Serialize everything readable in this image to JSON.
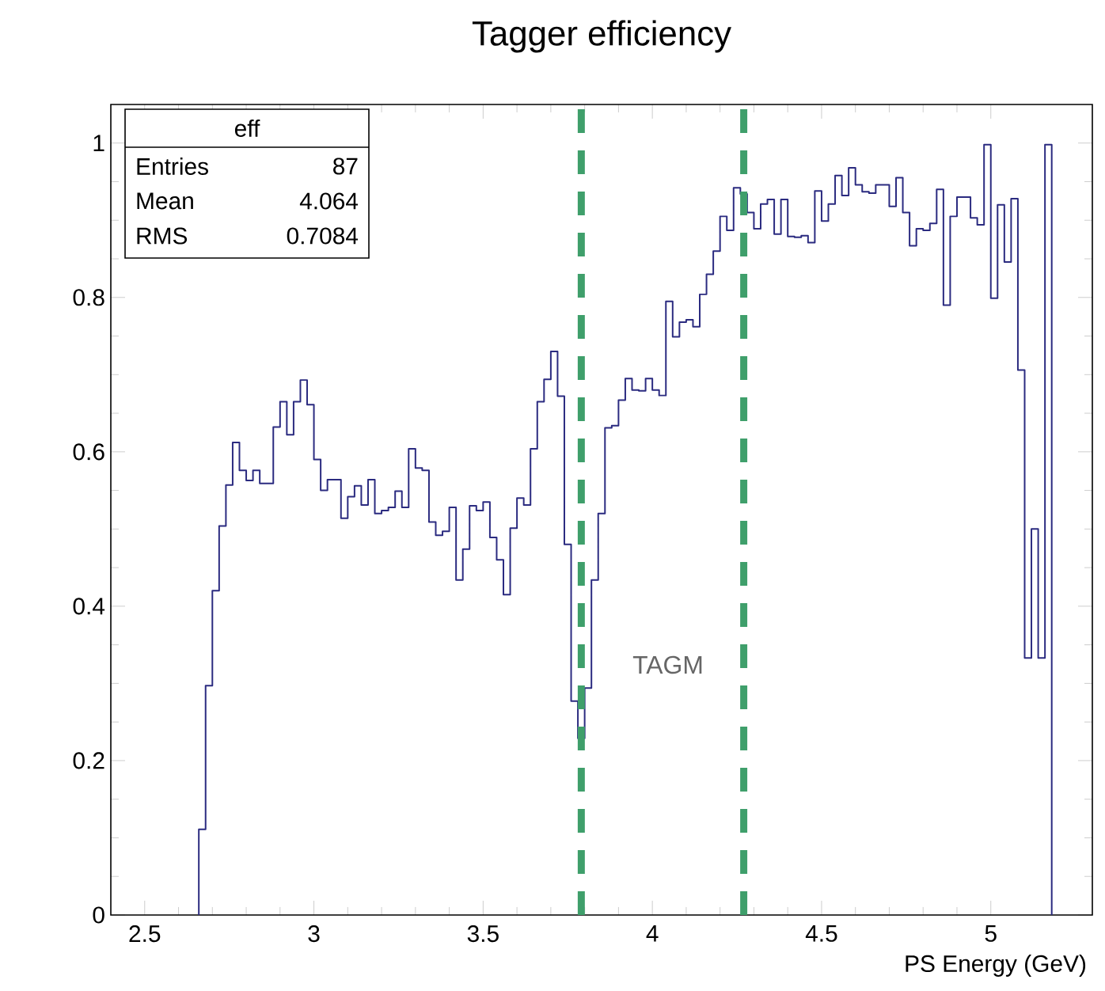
{
  "chart_data": {
    "type": "histogram",
    "title": "Tagger efficiency",
    "xlabel": "PS Energy (GeV)",
    "bins": [
      2.66,
      2.68,
      2.7,
      2.72,
      2.74,
      2.76,
      2.78,
      2.8,
      2.82,
      2.84,
      2.86,
      2.88,
      2.9,
      2.92,
      2.94,
      2.96,
      2.98,
      3,
      3.02,
      3.04,
      3.06,
      3.08,
      3.1,
      3.12,
      3.14,
      3.16,
      3.18,
      3.2,
      3.22,
      3.24,
      3.26,
      3.28,
      3.3,
      3.32,
      3.34,
      3.36,
      3.38,
      3.4,
      3.42,
      3.44,
      3.46,
      3.48,
      3.5,
      3.52,
      3.54,
      3.56,
      3.58,
      3.6,
      3.62,
      3.64,
      3.66,
      3.68,
      3.7,
      3.72,
      3.74,
      3.76,
      3.78,
      3.8,
      3.82,
      3.84,
      3.86,
      3.88,
      3.9,
      3.92,
      3.94,
      3.96,
      3.98,
      4,
      4.02,
      4.04,
      4.06,
      4.08,
      4.1,
      4.12,
      4.14,
      4.16,
      4.18,
      4.2,
      4.22,
      4.24,
      4.26,
      4.28,
      4.3,
      4.32,
      4.34,
      4.36,
      4.38,
      4.4,
      4.42,
      4.44,
      4.46,
      4.48,
      4.5,
      4.52,
      4.54,
      4.56,
      4.58,
      4.6,
      4.62,
      4.64,
      4.66,
      4.68,
      4.7,
      4.72,
      4.74,
      4.76,
      4.78,
      4.8,
      4.82,
      4.84,
      4.86,
      4.88,
      4.9,
      4.92,
      4.94,
      4.96,
      4.98,
      5,
      5.02,
      5.04,
      5.06,
      5.08,
      5.1,
      5.12,
      5.14,
      5.16,
      5.18
    ],
    "values": [
      0.111,
      0.297,
      0.42,
      0.504,
      0.557,
      0.612,
      0.576,
      0.563,
      0.576,
      0.559,
      0.559,
      0.632,
      0.665,
      0.622,
      0.665,
      0.693,
      0.661,
      0.59,
      0.55,
      0.564,
      0.564,
      0.514,
      0.542,
      0.556,
      0.531,
      0.564,
      0.52,
      0.524,
      0.528,
      0.549,
      0.528,
      0.604,
      0.579,
      0.576,
      0.509,
      0.492,
      0.497,
      0.528,
      0.434,
      0.474,
      0.53,
      0.524,
      0.535,
      0.489,
      0.46,
      0.415,
      0.501,
      0.54,
      0.531,
      0.604,
      0.665,
      0.694,
      0.73,
      0.672,
      0.48,
      0.277,
      0.229,
      0.294,
      0.434,
      0.52,
      0.631,
      0.634,
      0.667,
      0.695,
      0.68,
      0.679,
      0.695,
      0.68,
      0.673,
      0.795,
      0.749,
      0.768,
      0.771,
      0.762,
      0.804,
      0.83,
      0.86,
      0.905,
      0.887,
      0.942,
      0.934,
      0.91,
      0.889,
      0.921,
      0.927,
      0.882,
      0.927,
      0.879,
      0.878,
      0.88,
      0.871,
      0.938,
      0.899,
      0.921,
      0.958,
      0.932,
      0.968,
      0.946,
      0.937,
      0.935,
      0.946,
      0.946,
      0.918,
      0.955,
      0.91,
      0.867,
      0.889,
      0.887,
      0.896,
      0.94,
      0.79,
      0.905,
      0.93,
      0.93,
      0.903,
      0.894,
      0.998,
      0.799,
      0.92,
      0.846,
      0.928,
      0.706,
      0.333,
      0.5,
      0.333,
      0.998
    ],
    "color": "#2b2b80",
    "xlim": [
      2.4,
      5.3
    ],
    "ylim": [
      0,
      1.05
    ],
    "xticks": [
      2.5,
      3,
      3.5,
      4,
      4.5,
      5
    ],
    "yticks": [
      0,
      0.2,
      0.4,
      0.6,
      0.8,
      1
    ],
    "ref_lines": [
      {
        "axis": "x",
        "value": 3.79,
        "color": "#3f9f6b",
        "line_style": "dashed"
      },
      {
        "axis": "x",
        "value": 4.27,
        "color": "#3f9f6b",
        "line_style": "dashed"
      }
    ],
    "annotations": [
      "eff",
      "Entries",
      "87",
      "Mean",
      "4.064",
      "RMS",
      "0.7084",
      "TAGM"
    ]
  }
}
